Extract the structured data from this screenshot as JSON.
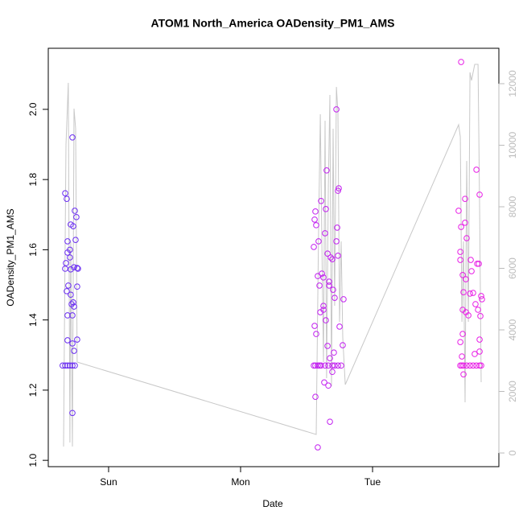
{
  "chart_data": {
    "type": "scatter",
    "title": "ATOM1 North_America OADensity_PM1_AMS",
    "x_label": "Date",
    "y_label": "OADensity_PM1_AMS",
    "xlim": [
      -0.457,
      2.957
    ],
    "xticks": [
      {
        "value": 0,
        "label": "Sun"
      },
      {
        "value": 1,
        "label": "Mon"
      },
      {
        "value": 2,
        "label": "Tue"
      }
    ],
    "ylim": [
      0.982,
      2.174
    ],
    "yticks": [
      {
        "value": 1.0,
        "label": "1.0"
      },
      1.2,
      1.4,
      1.6,
      1.8,
      {
        "value": 2.0,
        "label": "2.0"
      }
    ],
    "y2lim": [
      -444,
      13150
    ],
    "y2ticks": [
      0,
      2000,
      4000,
      6000,
      8000,
      10000,
      12000
    ],
    "y2_color": "#bbbbbb",
    "series": [
      {
        "type": "line",
        "axis": "y2",
        "color": "#c8c8c8",
        "x": [
          -0.341,
          -0.335,
          -0.323,
          -0.305,
          -0.293,
          -0.287,
          -0.274,
          -0.262,
          -0.25,
          -0.238,
          1.573,
          1.591,
          1.604,
          1.616,
          1.628,
          1.64,
          1.652,
          1.665,
          1.677,
          1.689,
          1.701,
          1.713,
          1.726,
          1.738,
          1.75,
          1.762,
          1.774,
          1.793,
          2.652,
          2.665,
          2.677,
          2.689,
          2.701,
          2.713,
          2.726,
          2.738,
          2.75,
          2.774,
          2.799,
          2.811,
          2.823
        ],
        "values": [
          209,
          3739,
          10013,
          12026,
          340,
          6876,
          209,
          11190,
          10536,
          2954,
          601,
          7137,
          11007,
          6876,
          2954,
          10797,
          2431,
          8706,
          11634,
          2170,
          10536,
          4784,
          11895,
          11059,
          4261,
          6876,
          3739,
          2222,
          10667,
          10275,
          4261,
          6876,
          1647,
          9490,
          4261,
          12366,
          12105,
          12627,
          12627,
          7922,
          2301
        ]
      },
      {
        "type": "scatter",
        "color": "#6a2cf2",
        "x": [
          -0.329,
          -0.317,
          -0.287,
          -0.268,
          -0.256,
          -0.244,
          -0.25,
          -0.311,
          -0.293,
          -0.323,
          -0.329,
          -0.238,
          -0.232,
          -0.262,
          -0.287,
          -0.305,
          -0.238,
          -0.317,
          -0.287,
          -0.28,
          -0.262,
          -0.268,
          -0.311,
          -0.274,
          -0.311,
          -0.238,
          -0.274,
          -0.262,
          -0.274,
          -0.274,
          -0.311,
          -0.293,
          -0.348,
          -0.329,
          -0.311,
          -0.293,
          -0.274,
          -0.256
        ],
        "values": [
          1.761,
          1.745,
          1.672,
          1.667,
          1.711,
          1.693,
          1.628,
          1.624,
          1.578,
          1.562,
          1.546,
          1.548,
          1.546,
          1.55,
          1.544,
          1.498,
          1.495,
          1.482,
          1.472,
          1.445,
          1.438,
          1.45,
          1.413,
          1.413,
          1.342,
          1.344,
          1.333,
          1.312,
          1.135,
          1.92,
          1.592,
          1.6,
          1.27,
          1.27,
          1.27,
          1.27,
          1.27,
          1.27
        ]
      },
      {
        "type": "scatter",
        "color": "#c21ff0",
        "x": [
          1.567,
          1.561,
          1.573,
          1.61,
          1.591,
          1.555,
          1.585,
          1.616,
          1.628,
          1.646,
          1.652,
          1.64,
          1.659,
          1.671,
          1.683,
          1.695,
          1.701,
          1.713,
          1.732,
          1.726,
          1.738,
          1.744,
          1.738,
          1.75,
          1.78,
          1.726,
          1.561,
          1.573,
          1.604,
          1.628,
          1.646,
          1.659,
          1.677,
          1.695,
          1.634,
          1.665,
          1.677,
          1.585,
          1.567,
          1.707,
          1.774,
          1.628,
          1.598,
          1.671,
          1.555,
          1.567,
          1.585,
          1.598,
          1.61,
          1.64,
          1.665,
          1.695,
          1.713,
          1.738,
          1.762
        ],
        "values": [
          1.709,
          1.686,
          1.67,
          1.739,
          1.624,
          1.608,
          1.525,
          1.532,
          1.521,
          1.716,
          1.826,
          1.647,
          1.589,
          1.498,
          1.578,
          1.573,
          1.486,
          1.463,
          1.663,
          1.624,
          1.768,
          1.775,
          1.583,
          1.381,
          1.459,
          2.0,
          1.383,
          1.36,
          1.422,
          1.429,
          1.399,
          1.326,
          1.291,
          1.252,
          1.222,
          1.213,
          1.11,
          1.037,
          1.181,
          1.307,
          1.328,
          1.44,
          1.498,
          1.509,
          1.27,
          1.27,
          1.27,
          1.27,
          1.27,
          1.27,
          1.27,
          1.27,
          1.27,
          1.27,
          1.27
        ]
      },
      {
        "type": "scatter",
        "color": "#e81ee6",
        "x": [
          2.671,
          2.652,
          2.701,
          2.701,
          2.671,
          2.713,
          2.665,
          2.665,
          2.744,
          2.805,
          2.793,
          2.683,
          2.707,
          2.75,
          2.738,
          2.689,
          2.762,
          2.811,
          2.787,
          2.823,
          2.829,
          2.78,
          2.683,
          2.707,
          2.726,
          2.799,
          2.817,
          2.683,
          2.665,
          2.811,
          2.677,
          2.811,
          2.689,
          2.774,
          2.665,
          2.677,
          2.689,
          2.713,
          2.738,
          2.762,
          2.787,
          2.811,
          2.823
        ],
        "values": [
          2.135,
          1.711,
          1.745,
          1.677,
          1.665,
          1.633,
          1.594,
          1.571,
          1.571,
          1.56,
          1.56,
          1.528,
          1.516,
          1.539,
          1.475,
          1.479,
          1.477,
          1.757,
          1.828,
          1.468,
          1.459,
          1.445,
          1.429,
          1.422,
          1.413,
          1.429,
          1.411,
          1.36,
          1.337,
          1.344,
          1.296,
          1.31,
          1.245,
          1.303,
          1.27,
          1.27,
          1.27,
          1.27,
          1.27,
          1.27,
          1.27,
          1.27,
          1.27
        ]
      }
    ]
  }
}
